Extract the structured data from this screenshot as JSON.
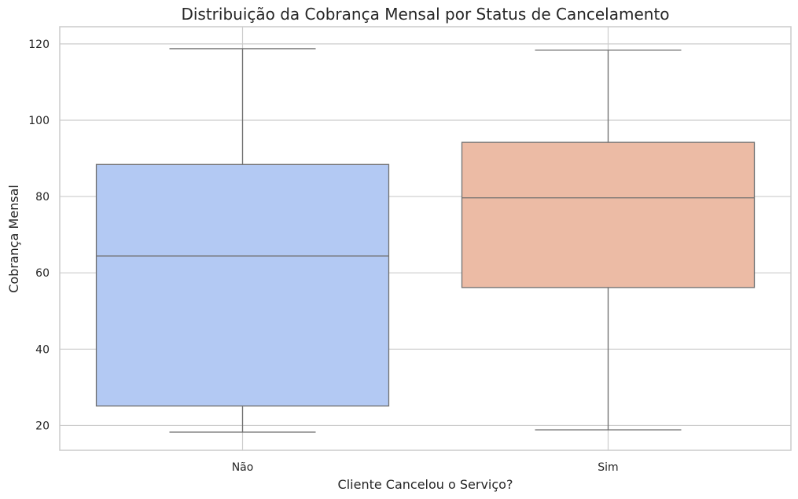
{
  "chart_data": {
    "type": "box",
    "title": "Distribuição da Cobrança Mensal por Status de Cancelamento",
    "xlabel": "Cliente Cancelou o Serviço?",
    "ylabel": "Cobrança Mensal",
    "ylim": [
      13.5,
      124.5
    ],
    "yticks": [
      20,
      40,
      60,
      80,
      100,
      120
    ],
    "ytick_labels": [
      "20",
      "40",
      "60",
      "80",
      "100",
      "120"
    ],
    "grid": true,
    "categories": [
      "Não",
      "Sim"
    ],
    "boxes": [
      {
        "category": "Não",
        "whisker_low": 18.25,
        "q1": 25.1,
        "median": 64.4,
        "q3": 88.4,
        "whisker_high": 118.75,
        "color": "#b3c9f3"
      },
      {
        "category": "Sim",
        "whisker_low": 18.85,
        "q1": 56.15,
        "median": 79.65,
        "q3": 94.2,
        "whisker_high": 118.35,
        "color": "#ecbba5"
      }
    ],
    "line_color": "#707070"
  }
}
